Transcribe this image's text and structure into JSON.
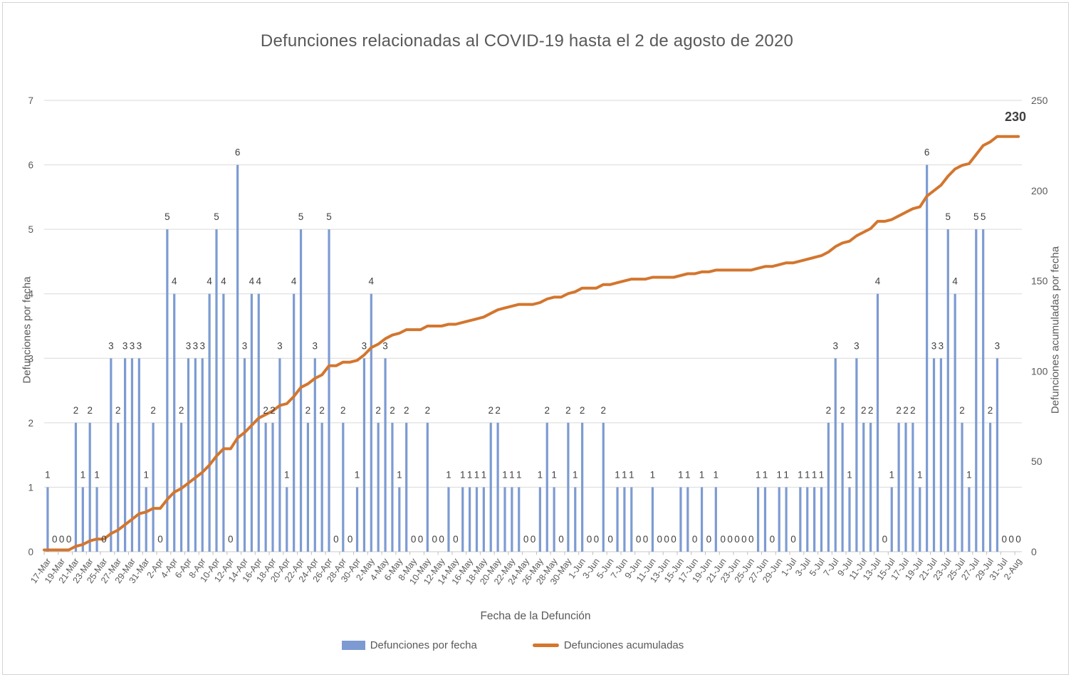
{
  "chart_data": {
    "type": "combo",
    "title": "Defunciones relacionadas al COVID-19 hasta el 2 de agosto de 2020",
    "xlabel": "Fecha de la Defunción",
    "ylabel_left": "Defunciones por fecha",
    "ylabel_right": "Defunciones acumuladas por fecha",
    "ylim_left": [
      0,
      7
    ],
    "ylim_right": [
      0,
      250
    ],
    "left_ticks": [
      0,
      1,
      2,
      3,
      4,
      5,
      6,
      7
    ],
    "right_ticks": [
      0,
      50,
      100,
      150,
      200,
      250
    ],
    "x_tick_every": 2,
    "grid": "horizontal",
    "legend_position": "bottom",
    "categories": [
      "17-Mar",
      "18-Mar",
      "19-Mar",
      "20-Mar",
      "21-Mar",
      "22-Mar",
      "23-Mar",
      "24-Mar",
      "25-Mar",
      "26-Mar",
      "27-Mar",
      "28-Mar",
      "29-Mar",
      "30-Mar",
      "31-Mar",
      "1-Apr",
      "2-Apr",
      "3-Apr",
      "4-Apr",
      "5-Apr",
      "6-Apr",
      "7-Apr",
      "8-Apr",
      "9-Apr",
      "10-Apr",
      "11-Apr",
      "12-Apr",
      "13-Apr",
      "14-Apr",
      "15-Apr",
      "16-Apr",
      "17-Apr",
      "18-Apr",
      "19-Apr",
      "20-Apr",
      "21-Apr",
      "22-Apr",
      "23-Apr",
      "24-Apr",
      "25-Apr",
      "26-Apr",
      "27-Apr",
      "28-Apr",
      "29-Apr",
      "30-Apr",
      "1-May",
      "2-May",
      "3-May",
      "4-May",
      "5-May",
      "6-May",
      "7-May",
      "8-May",
      "9-May",
      "10-May",
      "11-May",
      "12-May",
      "13-May",
      "14-May",
      "15-May",
      "16-May",
      "17-May",
      "18-May",
      "19-May",
      "20-May",
      "21-May",
      "22-May",
      "23-May",
      "24-May",
      "25-May",
      "26-May",
      "27-May",
      "28-May",
      "29-May",
      "30-May",
      "31-May",
      "1-Jun",
      "2-Jun",
      "3-Jun",
      "4-Jun",
      "5-Jun",
      "6-Jun",
      "7-Jun",
      "8-Jun",
      "9-Jun",
      "10-Jun",
      "11-Jun",
      "12-Jun",
      "13-Jun",
      "14-Jun",
      "15-Jun",
      "16-Jun",
      "17-Jun",
      "18-Jun",
      "19-Jun",
      "20-Jun",
      "21-Jun",
      "22-Jun",
      "23-Jun",
      "24-Jun",
      "25-Jun",
      "26-Jun",
      "27-Jun",
      "28-Jun",
      "29-Jun",
      "30-Jun",
      "1-Jul",
      "2-Jul",
      "3-Jul",
      "4-Jul",
      "5-Jul",
      "6-Jul",
      "7-Jul",
      "8-Jul",
      "9-Jul",
      "10-Jul",
      "11-Jul",
      "12-Jul",
      "13-Jul",
      "14-Jul",
      "15-Jul",
      "16-Jul",
      "17-Jul",
      "18-Jul",
      "19-Jul",
      "20-Jul",
      "21-Jul",
      "22-Jul",
      "23-Jul",
      "24-Jul",
      "25-Jul",
      "26-Jul",
      "27-Jul",
      "28-Jul",
      "29-Jul",
      "30-Jul",
      "31-Jul",
      "1-Aug",
      "2-Aug"
    ],
    "series": [
      {
        "name": "Defunciones por fecha",
        "type": "bar",
        "axis": "left",
        "labels_shown": true,
        "values": [
          1,
          0,
          0,
          0,
          2,
          1,
          2,
          1,
          0,
          3,
          2,
          3,
          3,
          3,
          1,
          2,
          0,
          5,
          4,
          2,
          3,
          3,
          3,
          4,
          5,
          4,
          0,
          6,
          3,
          4,
          4,
          2,
          2,
          3,
          1,
          4,
          5,
          2,
          3,
          2,
          5,
          0,
          2,
          0,
          1,
          3,
          4,
          2,
          3,
          2,
          1,
          2,
          0,
          0,
          2,
          0,
          0,
          1,
          0,
          1,
          1,
          1,
          1,
          2,
          2,
          1,
          1,
          1,
          0,
          0,
          1,
          2,
          1,
          0,
          2,
          1,
          2,
          0,
          0,
          2,
          0,
          1,
          1,
          1,
          0,
          0,
          1,
          0,
          0,
          0,
          1,
          1,
          0,
          1,
          0,
          1,
          0,
          0,
          0,
          0,
          0,
          1,
          1,
          0,
          1,
          1,
          0,
          1,
          1,
          1,
          1,
          2,
          3,
          2,
          1,
          3,
          2,
          2,
          4,
          0,
          1,
          2,
          2,
          2,
          1,
          6,
          3,
          3,
          5,
          4,
          2,
          1,
          5,
          5,
          2,
          3,
          0,
          0,
          0
        ]
      },
      {
        "name": "Defunciones acumuladas",
        "type": "line",
        "axis": "right",
        "derived": "cumulative_sum_of_bar_series",
        "final_value": 230,
        "end_label": "230"
      }
    ],
    "colors": {
      "bar": "#7D9BD2",
      "line": "#D3762E",
      "grid": "#D9D9D9",
      "axis_line": "#C9C9C9",
      "tick": "#BFBFBF",
      "axis_text": "#595959",
      "label_text": "#404040",
      "title_text": "#595959"
    }
  }
}
